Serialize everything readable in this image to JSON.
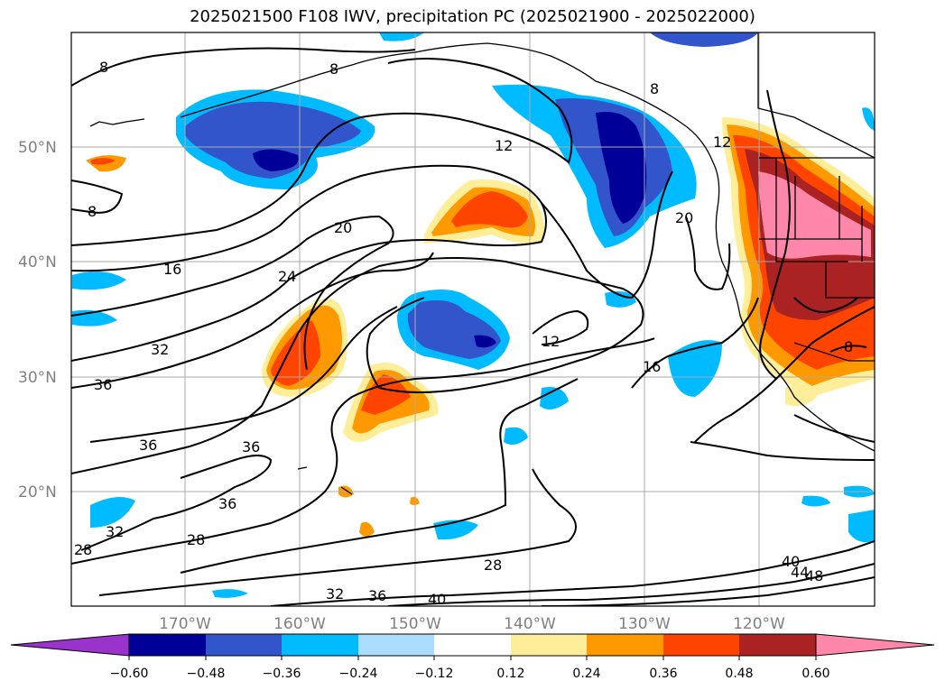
{
  "title": "2025021500 F108 IWV, precipitation PC (2025021900 - 2025022000)",
  "map": {
    "lat_labels": [
      "50°N",
      "40°N",
      "30°N",
      "20°N"
    ],
    "lon_labels": [
      "170°W",
      "160°W",
      "150°W",
      "140°W",
      "130°W",
      "120°W"
    ],
    "contour_labels": [
      "8",
      "8",
      "8",
      "12",
      "12",
      "16",
      "16",
      "20",
      "20",
      "24",
      "28",
      "28",
      "28",
      "32",
      "32",
      "32",
      "36",
      "36",
      "36",
      "36",
      "36",
      "40",
      "40",
      "44",
      "48",
      "8",
      "12",
      "8"
    ]
  },
  "colorbar": {
    "ticks": [
      "−0.60",
      "−0.48",
      "−0.36",
      "−0.24",
      "−0.12",
      "0.12",
      "0.24",
      "0.36",
      "0.48",
      "0.60"
    ],
    "colors": [
      "#9933cc",
      "#000099",
      "#3355cc",
      "#00bbff",
      "#aaddff",
      "#ffffff",
      "#ffee99",
      "#ff9900",
      "#ff4400",
      "#aa2222",
      "#ff88aa"
    ],
    "extend": "both"
  },
  "colors": {
    "grid": "#aaaaaa",
    "label_gray": "#808080"
  }
}
